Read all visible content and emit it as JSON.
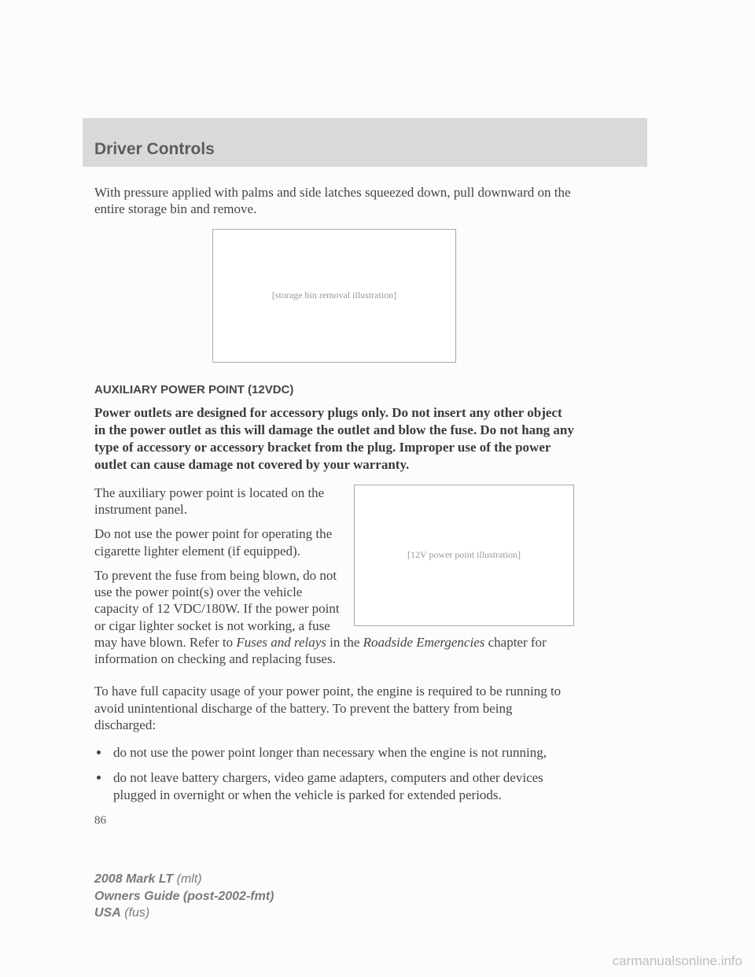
{
  "header": {
    "title": "Driver Controls"
  },
  "intro": {
    "text": "With pressure applied with palms and side latches squeezed down, pull downward on the entire storage bin and remove."
  },
  "figure1": {
    "alt": "[storage bin removal illustration]"
  },
  "section2": {
    "heading": "AUXILIARY POWER POINT (12VDC)",
    "warning": "Power outlets are designed for accessory plugs only. Do not insert any other object in the power outlet as this will damage the outlet and blow the fuse. Do not hang any type of accessory or accessory bracket from the plug. Improper use of the power outlet can cause damage not covered by your warranty.",
    "p1": "The auxiliary power point is located on the instrument panel.",
    "p2": "Do not use the power point for operating the cigarette lighter element (if equipped).",
    "p3_a": "To prevent the fuse from being blown, do not use the power point(s) over the vehicle capacity of 12 VDC/180W. If the power point or cigar lighter socket is not working, a fuse may have blown. Refer to ",
    "p3_i1": "Fuses and relays",
    "p3_b": " in the ",
    "p3_i2": "Roadside Emergencies",
    "p3_c": " chapter for information on checking and replacing fuses.",
    "p4": "To have full capacity usage of your power point, the engine is required to be running to avoid unintentional discharge of the battery. To prevent the battery from being discharged:",
    "bullets": [
      "do not use the power point longer than necessary when the engine is not running,",
      "do not leave battery chargers, video game adapters, computers and other devices plugged in overnight or when the vehicle is parked for extended periods."
    ],
    "figure_alt": "[12V power point illustration]"
  },
  "pageNumber": "86",
  "footer": {
    "line1_bold": "2008 Mark LT",
    "line1_rest": " (mlt)",
    "line2_bold": "Owners Guide (post-2002-fmt)",
    "line3_bold": "USA",
    "line3_rest": " (fus)"
  },
  "watermark": "carmanualsonline.info",
  "colors": {
    "header_bg": "#d9d9d9",
    "page_bg": "#fcfcfa",
    "body_text": "#444444",
    "footer_text": "#7a7a7a",
    "watermark_text": "#bdbdbd"
  }
}
